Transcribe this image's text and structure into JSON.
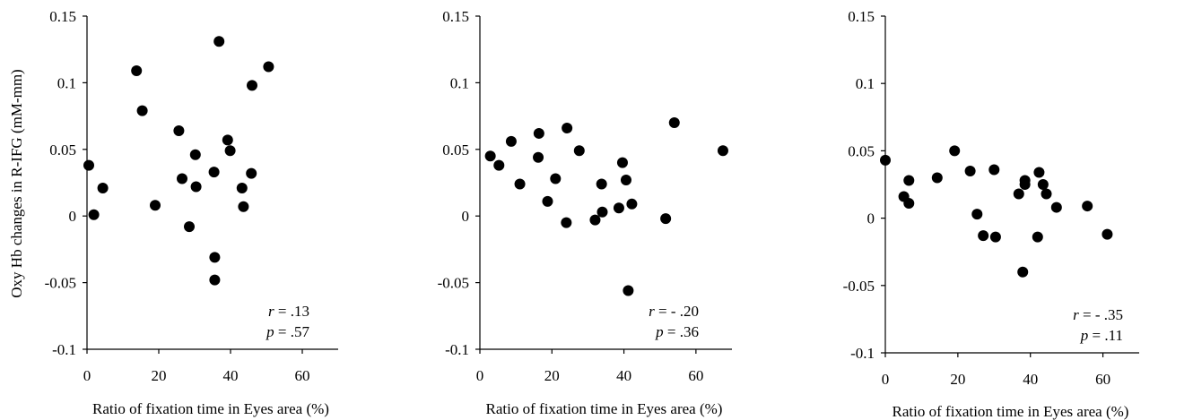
{
  "chart_data": [
    {
      "type": "scatter",
      "ylabel": "Oxy Hb changes in R-IFG (mM-mm)",
      "xlabel": "Ratio of fixation time in Eyes area (%)",
      "xlim": [
        0,
        70
      ],
      "ylim": [
        -0.1,
        0.15
      ],
      "xticks": [
        "0",
        "20",
        "40",
        "60"
      ],
      "yticks": [
        "0.15",
        "0.1",
        "0.05",
        "0",
        "-0.05",
        "-0.1"
      ],
      "stat_r": "r = .13",
      "stat_p": "p = .57",
      "x": [
        0.5,
        1.9,
        4.4,
        13.8,
        15.4,
        19.0,
        25.6,
        26.5,
        28.5,
        30.2,
        30.4,
        35.4,
        35.6,
        35.6,
        36.8,
        39.2,
        39.9,
        43.2,
        43.6,
        45.8,
        46.0,
        50.6
      ],
      "y": [
        0.038,
        0.001,
        0.021,
        0.109,
        0.079,
        0.008,
        0.064,
        0.028,
        -0.008,
        0.046,
        0.022,
        0.033,
        -0.031,
        -0.048,
        0.131,
        0.057,
        0.049,
        0.021,
        0.007,
        0.032,
        0.098,
        0.112
      ]
    },
    {
      "type": "scatter",
      "ylabel": "",
      "xlabel": "Ratio of fixation time in Eyes area (%)",
      "xlim": [
        0,
        70
      ],
      "ylim": [
        -0.1,
        0.15
      ],
      "xticks": [
        "0",
        "20",
        "40",
        "60"
      ],
      "yticks": [
        "0.15",
        "0.1",
        "0.05",
        "0",
        "-0.05",
        "-0.1"
      ],
      "stat_r": "r = - .20",
      "stat_p": "p = .36",
      "x": [
        2.9,
        5.3,
        8.7,
        11.1,
        16.2,
        16.4,
        18.8,
        21.0,
        24.0,
        24.2,
        27.6,
        32.0,
        33.8,
        34.0,
        38.6,
        39.6,
        40.6,
        41.2,
        42.2,
        51.6,
        54.0,
        67.5
      ],
      "y": [
        0.045,
        0.038,
        0.056,
        0.024,
        0.044,
        0.062,
        0.011,
        0.028,
        -0.005,
        0.066,
        0.049,
        -0.003,
        0.024,
        0.003,
        0.006,
        0.04,
        0.027,
        -0.056,
        0.009,
        -0.002,
        0.07,
        0.049
      ]
    },
    {
      "type": "scatter",
      "ylabel": "",
      "xlabel": "Ratio of fixation time in Eyes area (%)",
      "xlim": [
        0,
        70
      ],
      "ylim": [
        -0.1,
        0.15
      ],
      "xticks": [
        "0",
        "20",
        "40",
        "60"
      ],
      "yticks": [
        "0.15",
        "0.1",
        "0.05",
        "0",
        "-0.05",
        "-0.1"
      ],
      "stat_r": "r = - .35",
      "stat_p": "p = .11",
      "x": [
        0.0,
        5.1,
        6.5,
        6.5,
        14.3,
        19.1,
        23.4,
        25.3,
        27.0,
        30.0,
        30.4,
        36.8,
        37.9,
        38.5,
        38.5,
        42.0,
        42.4,
        43.5,
        44.4,
        47.2,
        55.7,
        61.2
      ],
      "y": [
        0.043,
        0.016,
        0.028,
        0.011,
        0.03,
        0.05,
        0.035,
        0.003,
        -0.013,
        0.036,
        -0.014,
        0.018,
        -0.04,
        0.025,
        0.028,
        -0.014,
        0.034,
        0.025,
        0.018,
        0.008,
        0.009,
        -0.012
      ]
    }
  ]
}
